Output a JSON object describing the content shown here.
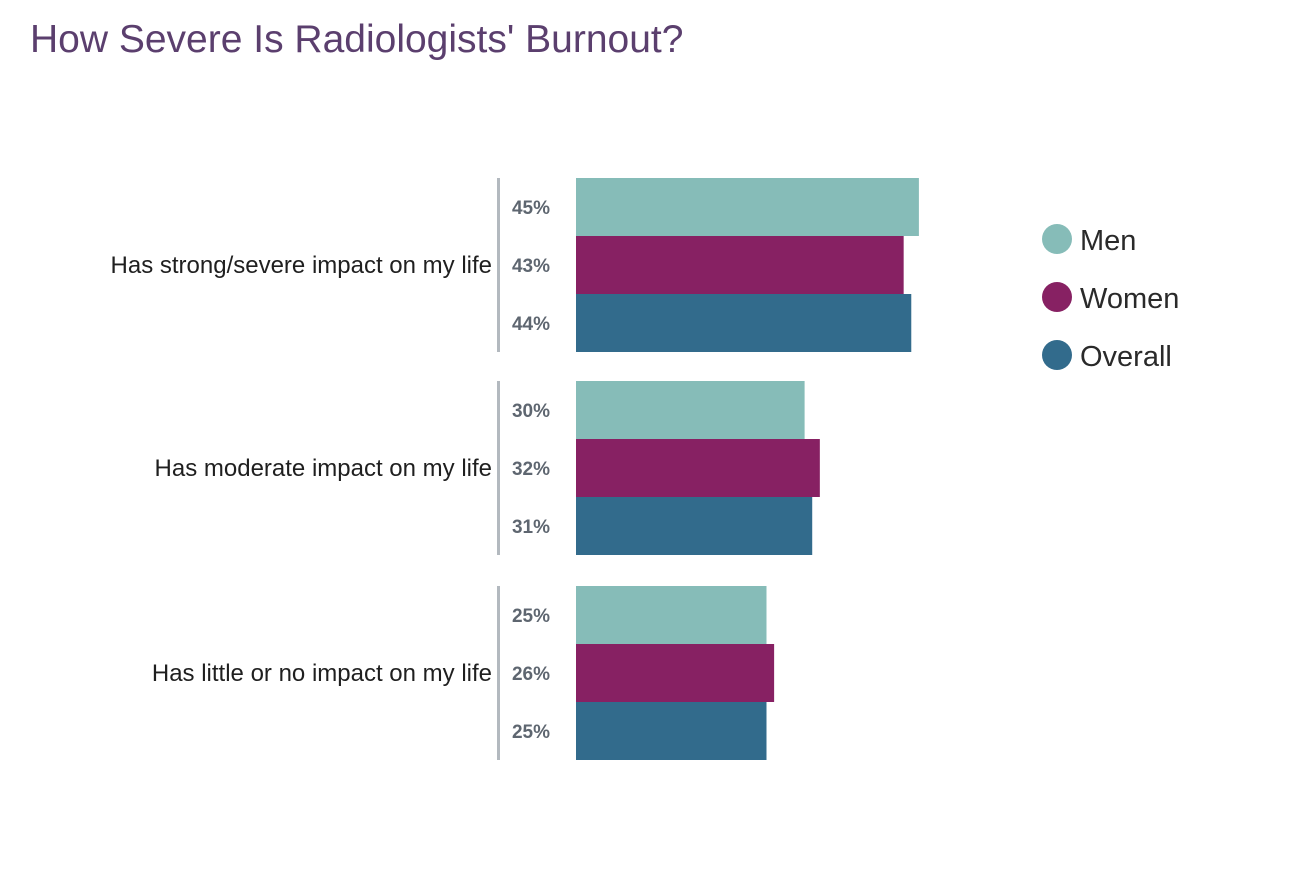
{
  "chart_data": {
    "type": "bar",
    "orientation": "horizontal",
    "title": "How Severe Is Radiologists' Burnout?",
    "categories": [
      "Has strong/severe impact on my life",
      "Has moderate impact on my life",
      "Has little or no impact on my life"
    ],
    "series": [
      {
        "name": "Men",
        "color": "#86bcb8",
        "values": [
          45,
          30,
          25
        ],
        "labels": [
          "45%",
          "30%",
          "25%"
        ]
      },
      {
        "name": "Women",
        "color": "#872163",
        "values": [
          43,
          32,
          26
        ],
        "labels": [
          "43%",
          "32%",
          "26%"
        ]
      },
      {
        "name": "Overall",
        "color": "#326b8c",
        "values": [
          44,
          31,
          25
        ],
        "labels": [
          "44%",
          "31%",
          "25%"
        ]
      }
    ],
    "xlim": [
      0,
      100
    ],
    "unit": "%",
    "grid": false,
    "legend_position": "right"
  }
}
